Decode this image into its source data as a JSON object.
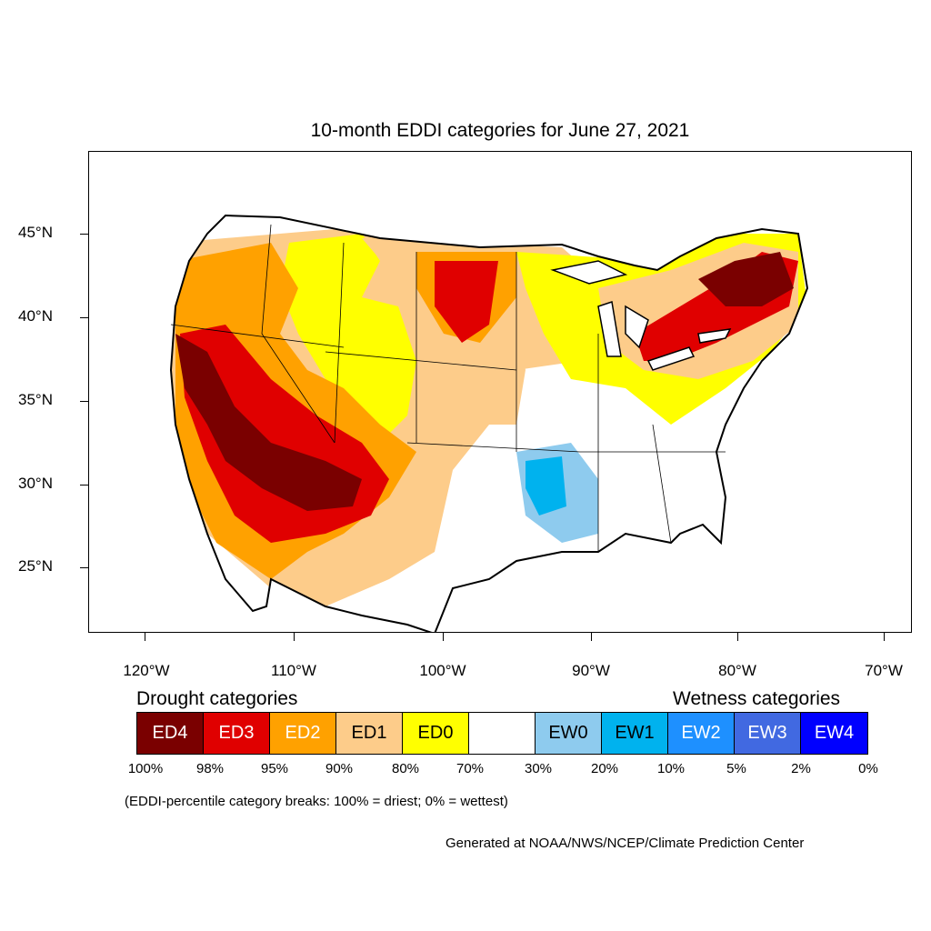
{
  "title": "10-month EDDI categories for June 27, 2021",
  "lat_labels": [
    "45°N",
    "40°N",
    "35°N",
    "30°N",
    "25°N"
  ],
  "lon_labels": [
    "120°W",
    "110°W",
    "100°W",
    "90°W",
    "80°W",
    "70°W"
  ],
  "legend": {
    "drought_title": "Drought categories",
    "wetness_title": "Wetness categories",
    "categories": [
      {
        "label": "ED4",
        "color": "#7a0000",
        "text_color": "#ffffff"
      },
      {
        "label": "ED3",
        "color": "#e00000",
        "text_color": "#ffffff"
      },
      {
        "label": "ED2",
        "color": "#ffa100",
        "text_color": "#ffffff"
      },
      {
        "label": "ED1",
        "color": "#fdcc8a",
        "text_color": "#000000"
      },
      {
        "label": "ED0",
        "color": "#ffff00",
        "text_color": "#000000"
      },
      {
        "label": "",
        "color": "#ffffff",
        "text_color": "#000000"
      },
      {
        "label": "EW0",
        "color": "#8ecbee",
        "text_color": "#000000"
      },
      {
        "label": "EW1",
        "color": "#00b2ee",
        "text_color": "#000000"
      },
      {
        "label": "EW2",
        "color": "#1e90ff",
        "text_color": "#ffffff"
      },
      {
        "label": "EW3",
        "color": "#4169e1",
        "text_color": "#ffffff"
      },
      {
        "label": "EW4",
        "color": "#0000ff",
        "text_color": "#ffffff"
      }
    ],
    "percent_breaks": [
      "100%",
      "98%",
      "95%",
      "90%",
      "80%",
      "70%",
      "30%",
      "20%",
      "10%",
      "5%",
      "2%",
      "0%"
    ],
    "note": "(EDDI-percentile category breaks: 100% = driest; 0% = wettest)"
  },
  "credit": "Generated at NOAA/NWS/NCEP/Climate Prediction Center"
}
